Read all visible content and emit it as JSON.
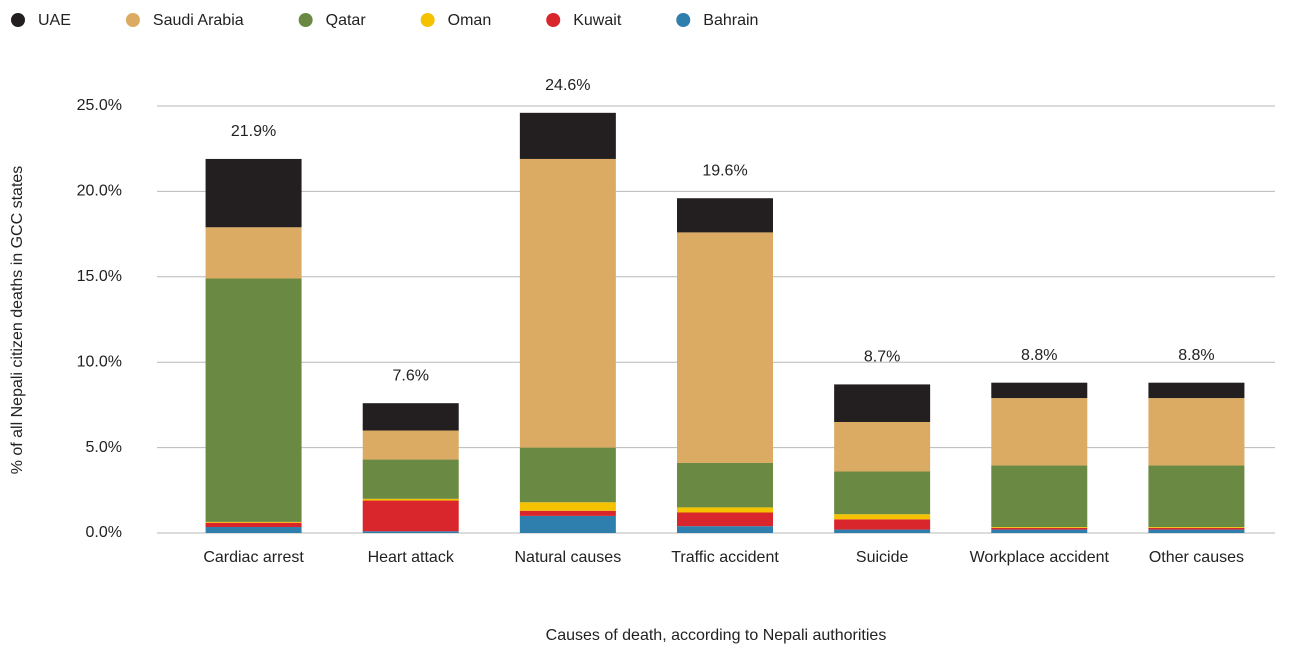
{
  "chart_data": {
    "type": "stacked_bar",
    "x_label": "Causes of death, according to Nepali authorities",
    "y_label": "% of all Nepali citizen deaths in GCC states",
    "categories": [
      "Cardiac arrest",
      "Heart attack",
      "Natural causes",
      "Traffic accident",
      "Suicide",
      "Workplace accident",
      "Other causes"
    ],
    "series": [
      {
        "name": "UAE",
        "color": "#231f20",
        "values": [
          4.0,
          1.6,
          2.7,
          2.0,
          2.2,
          0.9,
          0.9
        ]
      },
      {
        "name": "Saudi Arabia",
        "color": "#dbab63",
        "values": [
          3.0,
          1.7,
          16.9,
          13.5,
          2.9,
          3.95,
          3.95
        ]
      },
      {
        "name": "Qatar",
        "color": "#6a8a43",
        "values": [
          14.25,
          2.3,
          3.2,
          2.6,
          2.5,
          3.6,
          3.6
        ]
      },
      {
        "name": "Oman",
        "color": "#f5c200",
        "values": [
          0.05,
          0.1,
          0.5,
          0.3,
          0.3,
          0.05,
          0.05
        ]
      },
      {
        "name": "Kuwait",
        "color": "#d9262c",
        "values": [
          0.25,
          1.8,
          0.3,
          0.8,
          0.6,
          0.1,
          0.1
        ]
      },
      {
        "name": "Bahrain",
        "color": "#2e7fae",
        "values": [
          0.35,
          0.1,
          1.0,
          0.4,
          0.2,
          0.2,
          0.2
        ]
      }
    ],
    "totals": [
      21.9,
      7.6,
      24.6,
      19.6,
      8.7,
      8.8,
      8.8
    ],
    "total_labels": [
      "21.9%",
      "7.6%",
      "24.6%",
      "19.6%",
      "8.7%",
      "8.8%",
      "8.8%"
    ],
    "ylim": [
      0,
      25
    ],
    "yticks": [
      {
        "value": 0,
        "label": "0.0%"
      },
      {
        "value": 5,
        "label": "5.0%"
      },
      {
        "value": 10,
        "label": "10.0%"
      },
      {
        "value": 15,
        "label": "15.0%"
      },
      {
        "value": 20,
        "label": "20.0%"
      },
      {
        "value": 25,
        "label": "25.0%"
      }
    ],
    "grid": true,
    "legend": "top"
  }
}
